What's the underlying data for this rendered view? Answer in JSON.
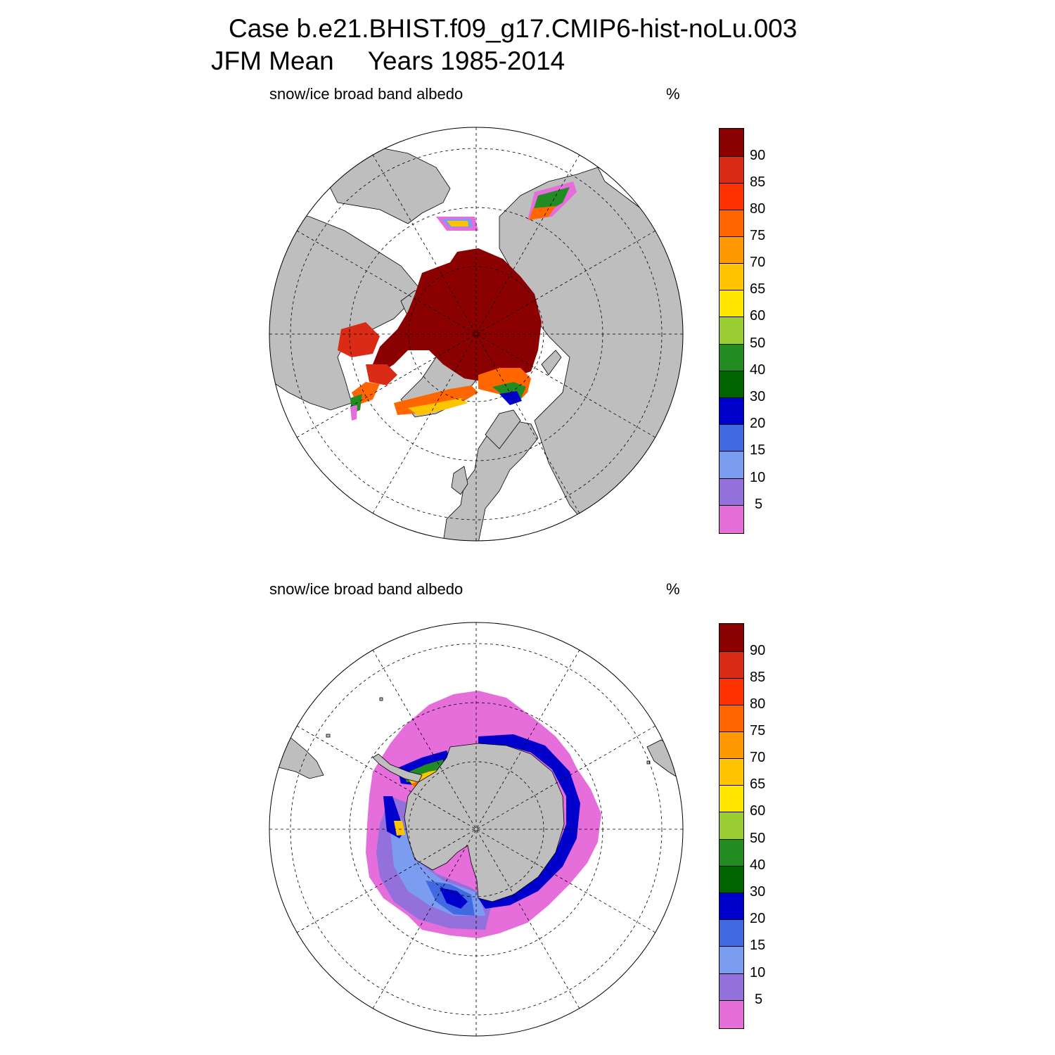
{
  "figure": {
    "title_line1": "Case b.e21.BHIST.f09_g17.CMIP6-hist-noLu.003",
    "title_season": "JFM Mean",
    "title_years": "Years 1985-2014"
  },
  "colors": {
    "land": "#bebebe",
    "ocean": "#ffffff",
    "palette": [
      "#e66edb",
      "#9370db",
      "#7b9cf0",
      "#4169e1",
      "#0000cd",
      "#006400",
      "#228b22",
      "#9acd32",
      "#ffe600",
      "#ffc400",
      "#ff9900",
      "#ff6600",
      "#ff3300",
      "#d92b15",
      "#8b0000"
    ]
  },
  "colorbar": {
    "labels": [
      "5",
      "10",
      "15",
      "20",
      "30",
      "40",
      "50",
      "60",
      "65",
      "70",
      "75",
      "80",
      "85",
      "90"
    ]
  },
  "panels": [
    {
      "id": "north",
      "hemisphere": "Northern",
      "variable_label": "snow/ice broad band albedo",
      "units": "%",
      "projection": "polar stereographic"
    },
    {
      "id": "south",
      "hemisphere": "Southern",
      "variable_label": "snow/ice broad band albedo",
      "units": "%",
      "projection": "polar stereographic"
    }
  ]
}
